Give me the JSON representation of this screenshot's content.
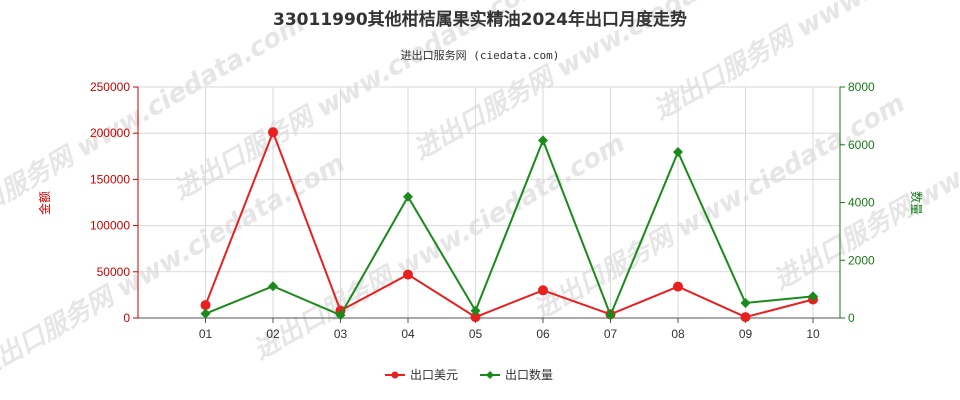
{
  "chart_data": {
    "type": "line",
    "title": "33011990其他柑桔属果实精油2024年出口月度走势",
    "subtitle": "进出口服务网 (ciedata.com)",
    "watermark": "进出口服务网 www.ciedata.com",
    "categories": [
      "01",
      "02",
      "03",
      "04",
      "05",
      "06",
      "07",
      "08",
      "09",
      "10"
    ],
    "y_left": {
      "label": "金额",
      "ylim": [
        0,
        250000
      ],
      "ticks": [
        "0",
        "50000",
        "100000",
        "150000",
        "200000",
        "250000"
      ],
      "tick_values": [
        0,
        50000,
        100000,
        150000,
        200000,
        250000
      ]
    },
    "y_right": {
      "label": "数量",
      "ylim": [
        0,
        8000
      ],
      "ticks": [
        "0",
        "2000",
        "4000",
        "6000",
        "8000"
      ],
      "tick_values": [
        0,
        2000,
        4000,
        6000,
        8000
      ]
    },
    "series": [
      {
        "name": "出口美元",
        "axis": "left",
        "color": "#e8201f",
        "marker": "circle",
        "values": [
          14000,
          201000,
          8000,
          47000,
          1000,
          30000,
          4000,
          34000,
          1000,
          20000
        ]
      },
      {
        "name": "出口数量",
        "axis": "right",
        "color": "#1a8a1a",
        "marker": "diamond",
        "values": [
          150,
          1100,
          100,
          4200,
          250,
          6150,
          100,
          5750,
          520,
          750
        ]
      }
    ],
    "grid": true,
    "legend_position": "bottom-center"
  }
}
